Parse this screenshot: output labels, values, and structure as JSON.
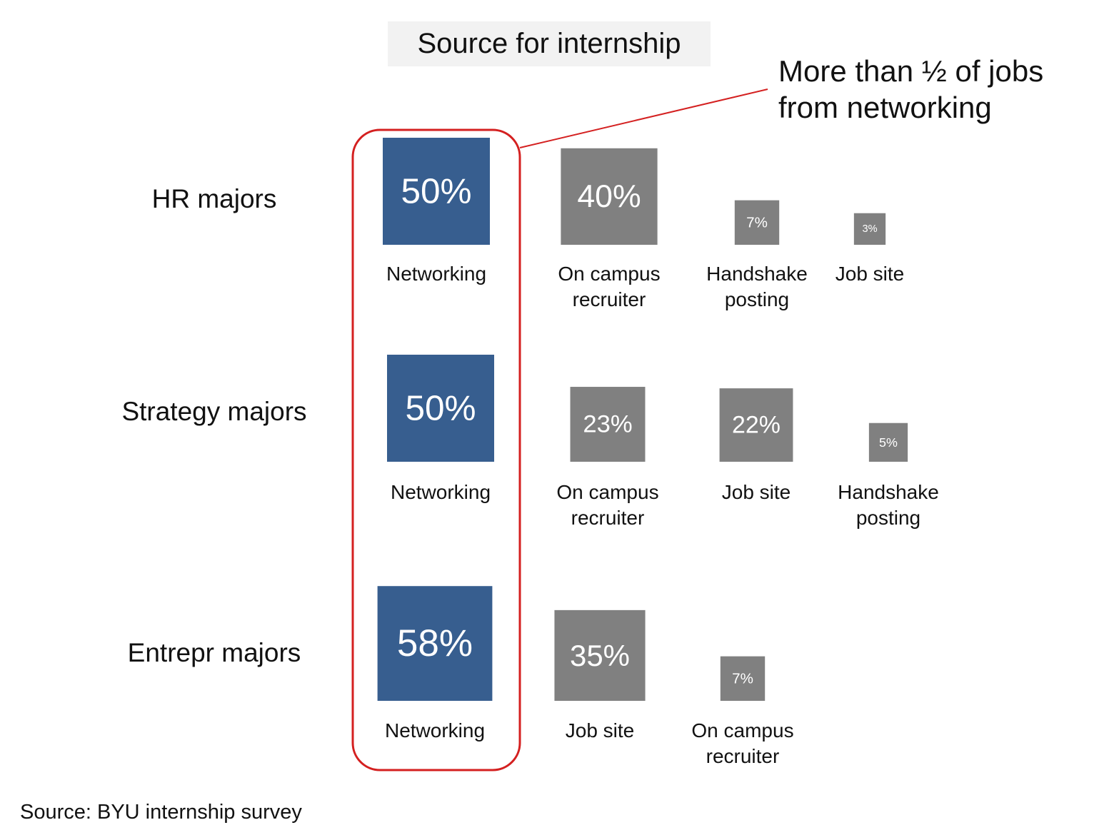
{
  "chart_data": {
    "type": "proportional-squares",
    "title": "Source for internship",
    "annotation": "More than ½ of jobs from networking",
    "source": "Source:  BYU internship survey",
    "groups": [
      {
        "name": "HR majors",
        "categories": [
          "Networking",
          "On campus recruiter",
          "Handshake posting",
          "Job site"
        ],
        "values": [
          50,
          40,
          7,
          3
        ],
        "value_labels": [
          "50%",
          "40%",
          "7%",
          "3%"
        ],
        "colors": [
          "#375e8f",
          "#808080",
          "#808080",
          "#808080"
        ]
      },
      {
        "name": "Strategy majors",
        "categories": [
          "Networking",
          "On campus recruiter",
          "Job site",
          "Handshake posting"
        ],
        "values": [
          50,
          23,
          22,
          5
        ],
        "value_labels": [
          "50%",
          "23%",
          "22%",
          "5%"
        ],
        "colors": [
          "#375e8f",
          "#808080",
          "#808080",
          "#808080"
        ]
      },
      {
        "name": "Entrepr majors",
        "categories": [
          "Networking",
          "Job site",
          "On campus recruiter"
        ],
        "values": [
          58,
          35,
          7
        ],
        "value_labels": [
          "58%",
          "35%",
          "7%"
        ],
        "colors": [
          "#375e8f",
          "#808080",
          "#808080"
        ]
      }
    ]
  }
}
